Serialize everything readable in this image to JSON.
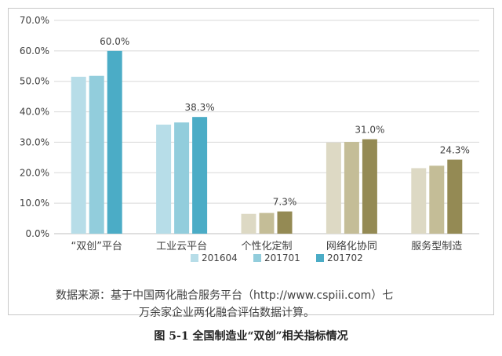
{
  "caption": "图 5-1  全国制造业“双创”相关指标情况",
  "notes": [
    "数据来源：基于中国两化融合服务平台（http://www.cspiii.com）七",
    "万余家企业两化融合评估数据计算。"
  ],
  "colors": {
    "201604_a": "#b7dde8",
    "201701_a": "#92cddc",
    "201702_a": "#4bacc6",
    "201604_b": "#ddd9c4",
    "201701_b": "#c4bd97",
    "201702_b": "#948a54",
    "grid": "#d9d9d9",
    "axis": "#bfbfbf"
  },
  "chart_data": {
    "type": "bar",
    "title": "",
    "xlabel": "",
    "ylabel": "",
    "ylim": [
      0,
      70
    ],
    "ytick_step": 10,
    "ytick_labels": [
      "0.0%",
      "10.0%",
      "20.0%",
      "30.0%",
      "40.0%",
      "50.0%",
      "60.0%",
      "70.0%"
    ],
    "grid": true,
    "legend_position": "bottom",
    "categories": [
      "“双创”平台",
      "工业云平台",
      "个性化定制",
      "网络化协同",
      "服务型制造"
    ],
    "series": [
      {
        "name": "201604",
        "values": [
          51.5,
          35.8,
          6.5,
          29.9,
          21.5
        ]
      },
      {
        "name": "201701",
        "values": [
          51.8,
          36.5,
          6.8,
          30.1,
          22.3
        ]
      },
      {
        "name": "201702",
        "values": [
          60.0,
          38.3,
          7.3,
          31.0,
          24.3
        ]
      }
    ],
    "data_labels": [
      "60.0%",
      "38.3%",
      "7.3%",
      "31.0%",
      "24.3%"
    ]
  }
}
